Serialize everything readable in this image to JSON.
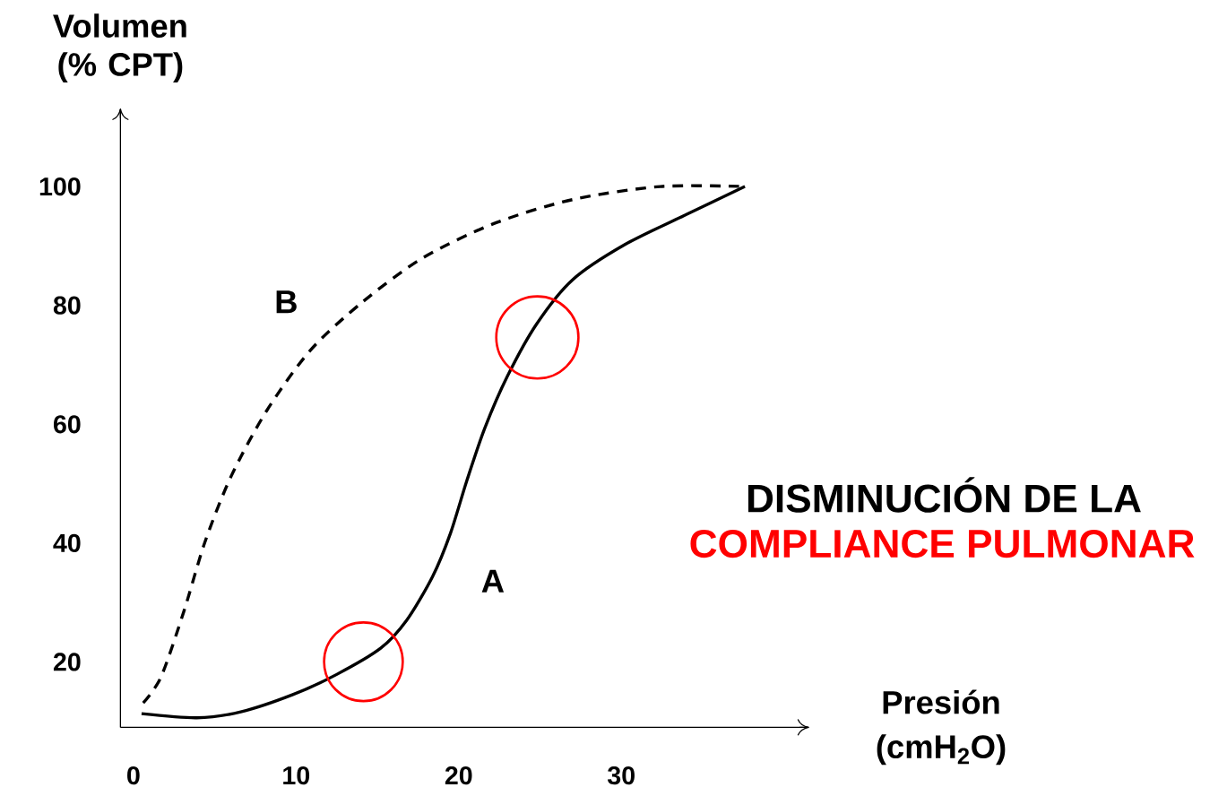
{
  "chart_data": {
    "type": "line",
    "xlabel": "Presión (cmH$_{2}$O)",
    "ylabel": "Volumen (% CPT)",
    "annotations": [
      "DISMINUCIÓN DE LA",
      "COMPLIANCE PULMONAR"
    ],
    "xlim": [
      -0.8,
      41.5
    ],
    "ylim": [
      9,
      113
    ],
    "xticks": [
      0,
      10,
      20,
      30
    ],
    "yticks": [
      20,
      40,
      60,
      80,
      100
    ],
    "grid": false,
    "legend": false,
    "marker": "none",
    "series": [
      {
        "name": "A",
        "color": "#000000",
        "line_style": "solid",
        "x": [
          0.5,
          3.9,
          6.6,
          9.8,
          12.5,
          15.2,
          16.8,
          18.4,
          19.5,
          20.5,
          21.6,
          23,
          24.8,
          27,
          30.2,
          34,
          37.6
        ],
        "values": [
          11.3,
          10.6,
          11.6,
          14.5,
          17.9,
          22.3,
          27,
          34.4,
          41.7,
          50.5,
          59.3,
          68.1,
          76.9,
          84.3,
          90.2,
          95.3,
          100
        ]
      },
      {
        "name": "B",
        "color": "#000000",
        "line_style": "dashed",
        "x": [
          0.6,
          1.7,
          3.1,
          4.4,
          6,
          8.2,
          10.9,
          14.1,
          17.8,
          22.2,
          27,
          32.4,
          37.6
        ],
        "values": [
          13.1,
          17.5,
          28.5,
          40.2,
          51.2,
          62.3,
          72.5,
          80.6,
          88,
          93.8,
          97.8,
          100,
          100
        ]
      }
    ]
  }
}
